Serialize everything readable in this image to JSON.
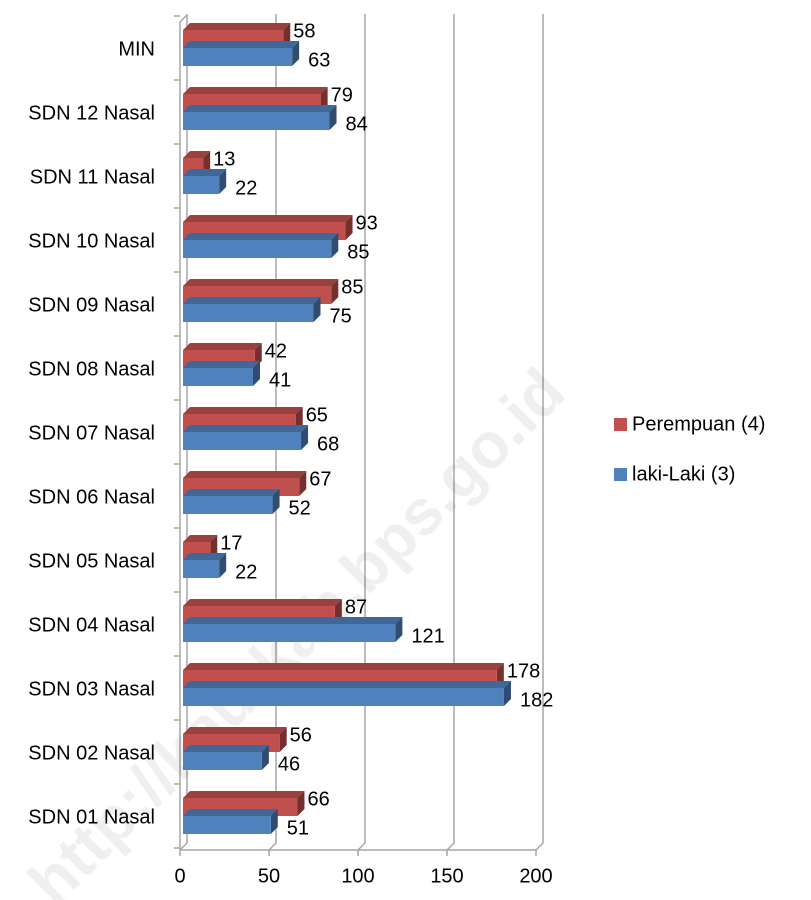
{
  "chart_data": {
    "type": "bar",
    "orientation": "horizontal",
    "categories": [
      "MIN",
      "SDN 12 Nasal",
      "SDN 11 Nasal",
      "SDN 10 Nasal",
      "SDN 09 Nasal",
      "SDN 08 Nasal",
      "SDN 07 Nasal",
      "SDN 06 Nasal",
      "SDN 05 Nasal",
      "SDN 04 Nasal",
      "SDN 03 Nasal",
      "SDN 02 Nasal",
      "SDN 01 Nasal"
    ],
    "series": [
      {
        "name": "Perempuan (4)",
        "color": "#c0504d",
        "values": [
          58,
          79,
          13,
          93,
          85,
          42,
          65,
          67,
          17,
          87,
          178,
          56,
          66
        ]
      },
      {
        "name": "laki-Laki (3)",
        "color": "#4f81bd",
        "values": [
          63,
          84,
          22,
          85,
          75,
          41,
          68,
          52,
          22,
          121,
          182,
          46,
          51
        ]
      }
    ],
    "xlim": [
      0,
      200
    ],
    "xticks": [
      0,
      50,
      100,
      150,
      200
    ],
    "grid": true,
    "legend": "right",
    "watermark": "http://kaurkab.bps.go.id"
  }
}
